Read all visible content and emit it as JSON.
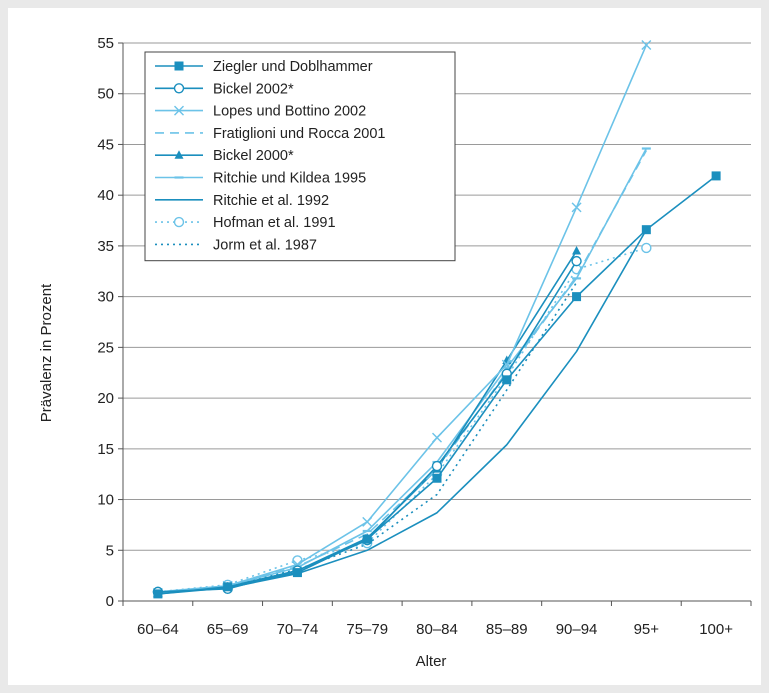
{
  "chart_data": {
    "type": "line",
    "title": "",
    "xlabel": "Alter",
    "ylabel": "Prävalenz in Prozent",
    "categories": [
      "60–64",
      "65–69",
      "70–74",
      "75–79",
      "80–84",
      "85–89",
      "90–94",
      "95+",
      "100+"
    ],
    "ylim": [
      0,
      55
    ],
    "yticks": [
      0,
      5,
      10,
      15,
      20,
      25,
      30,
      35,
      40,
      45,
      50,
      55
    ],
    "grid": "horizontal",
    "legend_position": "top-left",
    "series": [
      {
        "name": "Ziegler und Doblhammer",
        "color": "#1b8fbe",
        "dash": "solid",
        "marker": "square",
        "values": [
          0.7,
          1.4,
          2.8,
          6.1,
          12.1,
          21.8,
          30.0,
          36.6,
          41.9
        ]
      },
      {
        "name": "Bickel 2002*",
        "color": "#1b8fbe",
        "dash": "solid",
        "marker": "circle-open",
        "values": [
          0.9,
          1.2,
          3.0,
          6.0,
          13.3,
          22.4,
          33.5,
          null,
          null
        ]
      },
      {
        "name": "Lopes und Bottino 2002",
        "color": "#6cc3e8",
        "dash": "solid",
        "marker": "x",
        "values": [
          0.8,
          1.5,
          3.6,
          7.8,
          16.1,
          23.3,
          38.8,
          54.8,
          null
        ]
      },
      {
        "name": "Fratiglioni und Rocca 2001",
        "color": "#6cc3e8",
        "dash": "dashed",
        "marker": "none",
        "values": [
          0.8,
          1.5,
          3.4,
          6.6,
          13.0,
          22.6,
          32.0,
          44.4,
          null
        ]
      },
      {
        "name": "Bickel 2000*",
        "color": "#1b8fbe",
        "dash": "solid",
        "marker": "triangle",
        "values": [
          0.8,
          1.4,
          3.0,
          6.2,
          13.0,
          23.7,
          34.5,
          null,
          null
        ]
      },
      {
        "name": "Ritchie und Kildea 1995",
        "color": "#6cc3e8",
        "dash": "solid",
        "marker": "dash",
        "values": [
          0.9,
          1.5,
          3.3,
          6.9,
          13.7,
          23.0,
          31.8,
          44.6,
          null
        ]
      },
      {
        "name": "Ritchie et al. 1992",
        "color": "#1b8fbe",
        "dash": "solid",
        "marker": "none",
        "values": [
          0.7,
          1.3,
          2.7,
          5.0,
          8.7,
          15.4,
          24.6,
          36.6,
          null
        ]
      },
      {
        "name": "Hofman et al. 1991",
        "color": "#6cc3e8",
        "dash": "dotted",
        "marker": "circle-open",
        "values": [
          0.9,
          1.6,
          4.0,
          5.7,
          12.5,
          22.1,
          32.7,
          34.8,
          null
        ]
      },
      {
        "name": "Jorm et al. 1987",
        "color": "#1b8fbe",
        "dash": "dotted",
        "marker": "none",
        "values": [
          0.8,
          1.5,
          3.1,
          5.6,
          10.5,
          20.8,
          31.4,
          null,
          null
        ]
      }
    ]
  }
}
